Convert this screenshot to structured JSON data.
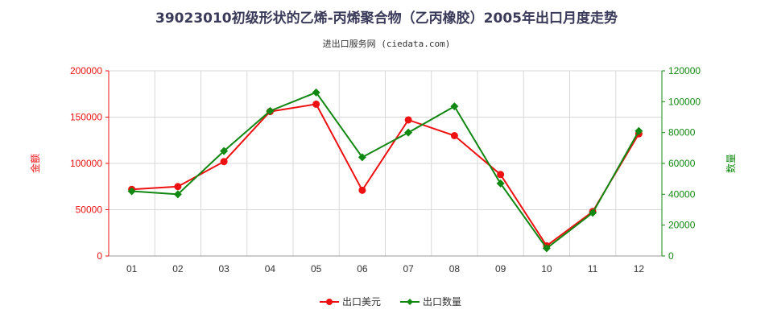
{
  "chart_data": {
    "type": "line",
    "title": "39023010初级形状的乙烯-丙烯聚合物（乙丙橡胶）2005年出口月度走势",
    "subtitle": "进出口服务网 (ciedata.com)",
    "categories": [
      "01",
      "02",
      "03",
      "04",
      "05",
      "06",
      "07",
      "08",
      "09",
      "10",
      "11",
      "12"
    ],
    "y_left": {
      "label": "金额",
      "range": [
        0,
        200000
      ],
      "ticks": [
        "0",
        "50000",
        "100000",
        "150000",
        "200000"
      ]
    },
    "y_right": {
      "label": "数量",
      "range": [
        0,
        120000
      ],
      "ticks": [
        "0",
        "20000",
        "40000",
        "60000",
        "80000",
        "100000",
        "120000"
      ]
    },
    "series": [
      {
        "name": "出口美元",
        "axis": "left",
        "color": "#ee1111",
        "values": [
          72000,
          75000,
          102000,
          156000,
          164000,
          71000,
          147000,
          130000,
          88000,
          11000,
          48000,
          132000
        ]
      },
      {
        "name": "出口数量",
        "axis": "right",
        "color": "#118811",
        "values": [
          42000,
          40000,
          68000,
          94000,
          106000,
          64000,
          80000,
          97000,
          47000,
          5000,
          28000,
          81000
        ]
      }
    ],
    "grid": true,
    "legend_position": "bottom-center"
  }
}
